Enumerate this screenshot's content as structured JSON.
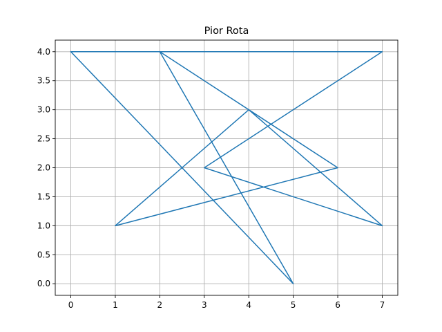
{
  "chart_data": {
    "type": "line",
    "title": "Pior Rota",
    "xlabel": "",
    "ylabel": "",
    "xlim": [
      -0.35,
      7.35
    ],
    "ylim": [
      -0.2,
      4.2
    ],
    "x_ticks": [
      0,
      1,
      2,
      3,
      4,
      5,
      6,
      7
    ],
    "x_tick_labels": [
      "0",
      "1",
      "2",
      "3",
      "4",
      "5",
      "6",
      "7"
    ],
    "y_ticks": [
      0.0,
      0.5,
      1.0,
      1.5,
      2.0,
      2.5,
      3.0,
      3.5,
      4.0
    ],
    "y_tick_labels": [
      "0.0",
      "0.5",
      "1.0",
      "1.5",
      "2.0",
      "2.5",
      "3.0",
      "3.5",
      "4.0"
    ],
    "grid": true,
    "series": [
      {
        "color": "#1f77b4",
        "x": [
          0,
          5,
          2,
          6,
          1,
          4,
          7,
          3,
          7,
          0
        ],
        "y": [
          4,
          0,
          4,
          2,
          1,
          3,
          1,
          2,
          4,
          4
        ]
      }
    ]
  }
}
